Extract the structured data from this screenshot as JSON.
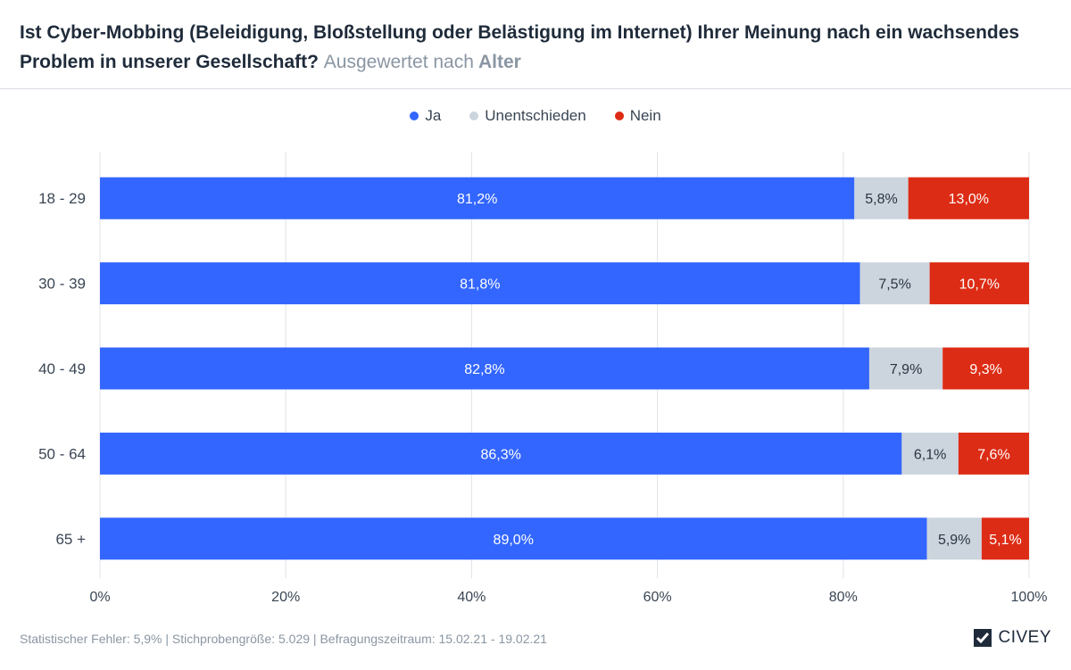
{
  "header": {
    "title_main": "Ist Cyber-Mobbing (Beleidigung, Bloßstellung oder Belästigung im Internet) Ihrer Meinung nach ein wachsendes Problem in unserer Gesellschaft?",
    "title_sub": "Ausgewertet nach",
    "title_sub_strong": "Alter"
  },
  "colors": {
    "ja": "#3366ff",
    "unentschieden": "#ccd5de",
    "nein": "#dd2c15",
    "grid": "#dfe3e8"
  },
  "chart_data": {
    "type": "bar",
    "orientation": "horizontal",
    "stacked": true,
    "categories": [
      "18 - 29",
      "30 - 39",
      "40 - 49",
      "50 - 64",
      "65 +"
    ],
    "series": [
      {
        "name": "Ja",
        "values": [
          81.2,
          81.8,
          82.8,
          86.3,
          89.0
        ],
        "labels": [
          "81,2%",
          "81,8%",
          "82,8%",
          "86,3%",
          "89,0%"
        ]
      },
      {
        "name": "Unentschieden",
        "values": [
          5.8,
          7.5,
          7.9,
          6.1,
          5.9
        ],
        "labels": [
          "5,8%",
          "7,5%",
          "7,9%",
          "6,1%",
          "5,9%"
        ]
      },
      {
        "name": "Nein",
        "values": [
          13.0,
          10.7,
          9.3,
          7.6,
          5.1
        ],
        "labels": [
          "13,0%",
          "10,7%",
          "9,3%",
          "7,6%",
          "5,1%"
        ]
      }
    ],
    "xlim": [
      0,
      100
    ],
    "xticks": [
      "0%",
      "20%",
      "40%",
      "60%",
      "80%",
      "100%"
    ],
    "grid": true,
    "legend_position": "top-center"
  },
  "footer": {
    "text": "Statistischer Fehler: 5,9% | Stichprobengröße: 5.029 | Befragungszeitraum: 15.02.21 - 19.02.21"
  },
  "brand": {
    "name": "CIVEY",
    "icon": "civey-logo-icon"
  }
}
